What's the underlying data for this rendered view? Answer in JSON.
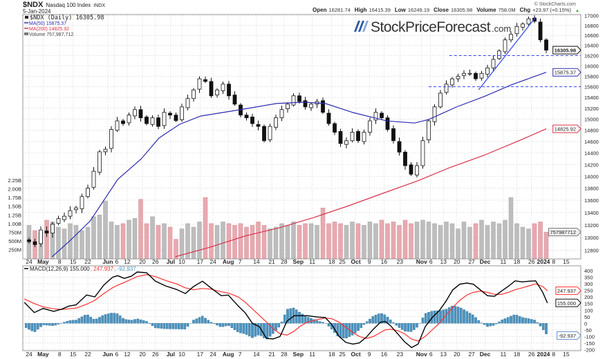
{
  "header": {
    "symbol": "$NDX",
    "name": "Nasdaq 100 Index",
    "exchange": "INDX",
    "date": "5-Jan-2024",
    "copyright": "© StockCharts.com",
    "ohlc": [
      {
        "label": "Open",
        "value": "16281.74"
      },
      {
        "label": "High",
        "value": "16415.39"
      },
      {
        "label": "Low",
        "value": "16249.19"
      },
      {
        "label": "Close",
        "value": "16305.98"
      },
      {
        "label": "Volume",
        "value": "758.0M"
      },
      {
        "label": "Chg",
        "value": "+23.97 (+0.15%)"
      }
    ],
    "change_arrow": "▲"
  },
  "logo": {
    "main": "StockPriceForecast",
    "suffix": ".com"
  },
  "legend": {
    "price": "$NDX (Daily) 16305.98",
    "ma50": "MA(50) 15875.37",
    "ma200": "MA(200) 14825.92",
    "volume": "Volume 757,987,712",
    "macd_name": "MACD(12,26,9) 155.000",
    "macd_signal": ", 247.937",
    "macd_hist": ", -92.937"
  },
  "colors": {
    "ma50": "#2b2bb0",
    "ma200": "#d8304a",
    "hline": "#3344ee",
    "vol_up": "#bdbdbd",
    "vol_down": "#e8a9b0",
    "macd": "#000000",
    "signal": "#ff3030",
    "hist": "#4b93c0"
  },
  "chart_data": [
    {
      "type": "candlestick",
      "title": "$NDX (Daily)",
      "scale": "log",
      "ylim": [
        12800,
        17000
      ],
      "y_ticks": [
        12800,
        13000,
        13200,
        13400,
        13600,
        13800,
        14000,
        14200,
        14400,
        14600,
        14800,
        15000,
        15200,
        15400,
        15600,
        15800,
        16000,
        16200,
        16400,
        16600,
        16800,
        17000
      ],
      "close": [
        12935,
        12890,
        13120,
        13070,
        13210,
        13300,
        13340,
        13430,
        13475,
        13660,
        13800,
        14085,
        14420,
        14465,
        14815,
        14970,
        14920,
        15075,
        15175,
        15025,
        14920,
        15025,
        14870,
        15125,
        15075,
        14975,
        15225,
        15380,
        15540,
        15750,
        15700,
        15430,
        15540,
        15650,
        15430,
        15275,
        15075,
        15025,
        14920,
        14870,
        14615,
        14870,
        15025,
        15175,
        15275,
        15430,
        15325,
        15225,
        15275,
        15325,
        15125,
        14920,
        14765,
        14565,
        14615,
        14765,
        14615,
        14765,
        14970,
        15125,
        15025,
        14815,
        14615,
        14415,
        14180,
        14035,
        14180,
        14615,
        14970,
        15225,
        15480,
        15650,
        15750,
        15800,
        15855,
        15855,
        15750,
        15855,
        15960,
        16125,
        16290,
        16510,
        16620,
        16780,
        16830,
        16935,
        16885,
        16510,
        16305.98
      ],
      "ma50": [
        [
          3.9,
          12702
        ],
        [
          6.8,
          12937
        ],
        [
          10.4,
          13263
        ],
        [
          15.1,
          13947
        ],
        [
          19.1,
          14299
        ],
        [
          22.1,
          14661
        ],
        [
          25.6,
          14907
        ],
        [
          29.2,
          15057
        ],
        [
          35.1,
          15159
        ],
        [
          38.6,
          15223
        ],
        [
          42.1,
          15287
        ],
        [
          46.8,
          15312
        ],
        [
          50.4,
          15287
        ],
        [
          55.1,
          15121
        ],
        [
          60.9,
          14968
        ],
        [
          65.6,
          14930
        ],
        [
          68,
          14994
        ],
        [
          72.7,
          15223
        ],
        [
          77.4,
          15416
        ],
        [
          82.1,
          15637
        ],
        [
          88,
          15875.37
        ]
      ],
      "ma200": [
        [
          24.9,
          12702
        ],
        [
          30.8,
          12849
        ],
        [
          36.7,
          13024
        ],
        [
          42.6,
          13155
        ],
        [
          48.5,
          13320
        ],
        [
          54.4,
          13510
        ],
        [
          60.2,
          13714
        ],
        [
          66.1,
          13921
        ],
        [
          71.5,
          14144
        ],
        [
          77.4,
          14358
        ],
        [
          83.3,
          14611
        ],
        [
          88,
          14825.92
        ]
      ],
      "horizontal_lines": [
        {
          "value": 16200,
          "from": 71.5
        },
        {
          "value": 15600,
          "from": 68
        }
      ],
      "trendline": [
        [
          76.5,
          15543
        ],
        [
          86.2,
          16967
        ]
      ],
      "markers": [
        {
          "label": "16305.98",
          "value": 16305.98,
          "style": "price"
        },
        {
          "label": "15875.37",
          "value": 15875.37,
          "style": "ma50"
        },
        {
          "label": "14825.92",
          "value": 14825.92,
          "style": "ma200"
        }
      ]
    },
    {
      "type": "bar",
      "title": "Volume",
      "units": "millions",
      "y_ticks": [
        {
          "v": 250,
          "label": "250M"
        },
        {
          "v": 500,
          "label": "500M"
        },
        {
          "v": 750,
          "label": "750M"
        },
        {
          "v": 1000,
          "label": "1.00B"
        },
        {
          "v": 1250,
          "label": "1.25B"
        },
        {
          "v": 1500,
          "label": "1.50B"
        },
        {
          "v": 1750,
          "label": "1.75B"
        },
        {
          "v": 2000,
          "label": "2.00B"
        },
        {
          "v": 2250,
          "label": "2.25B"
        }
      ],
      "values": [
        950,
        800,
        750,
        1100,
        1050,
        900,
        850,
        1000,
        950,
        800,
        900,
        1200,
        1250,
        1650,
        1050,
        950,
        1000,
        1100,
        1150,
        1700,
        1000,
        1200,
        950,
        1000,
        900,
        550,
        850,
        1000,
        900,
        1050,
        1750,
        1000,
        950,
        1050,
        1000,
        950,
        1000,
        900,
        950,
        1050,
        950,
        850,
        900,
        1000,
        950,
        1050,
        950,
        1000,
        1000,
        950,
        1450,
        1000,
        1050,
        1000,
        950,
        1050,
        1000,
        950,
        1050,
        1000,
        1100,
        1000,
        1050,
        950,
        1100,
        1000,
        1050,
        1100,
        1050,
        1000,
        950,
        1050,
        1000,
        850,
        1050,
        900,
        1000,
        1100,
        950,
        1050,
        1000,
        1100,
        1750,
        1000,
        900,
        850,
        1000,
        1050,
        758
      ],
      "marker": {
        "label": "757987712",
        "value": 758
      }
    },
    {
      "type": "line",
      "title": "MACD(12,26,9)",
      "ylim": [
        -200,
        400
      ],
      "y_ticks": [
        -200,
        -150,
        -100,
        -50,
        0,
        50,
        100,
        150,
        200,
        250,
        300,
        350,
        400
      ],
      "points_t_macd_signal": [
        [
          -0.8,
          159,
          185
        ],
        [
          0.9,
          82,
          150
        ],
        [
          2.4,
          113,
          125
        ],
        [
          4.2,
          91,
          110
        ],
        [
          5.6,
          108,
          105
        ],
        [
          6.8,
          131,
          110
        ],
        [
          8.0,
          140,
          115
        ],
        [
          9.8,
          215,
          145
        ],
        [
          11.2,
          201,
          175
        ],
        [
          12.7,
          289,
          225
        ],
        [
          14.2,
          350,
          270
        ],
        [
          15.1,
          362,
          290
        ],
        [
          16.2,
          341,
          310
        ],
        [
          17.4,
          358,
          335
        ],
        [
          18.4,
          390,
          355
        ],
        [
          20.0,
          385,
          370
        ],
        [
          21.5,
          320,
          355
        ],
        [
          23.3,
          283,
          325
        ],
        [
          25.1,
          257,
          300
        ],
        [
          26.6,
          226,
          270
        ],
        [
          28.0,
          280,
          255
        ],
        [
          29.5,
          320,
          265
        ],
        [
          30.9,
          271,
          260
        ],
        [
          32.7,
          210,
          240
        ],
        [
          33.9,
          215,
          230
        ],
        [
          35.6,
          131,
          200
        ],
        [
          36.8,
          79,
          160
        ],
        [
          38.0,
          0,
          110
        ],
        [
          39.2,
          -26,
          60
        ],
        [
          40.4,
          -114,
          10
        ],
        [
          41.5,
          -119,
          -40
        ],
        [
          42.7,
          -100,
          -80
        ],
        [
          43.9,
          17,
          -90
        ],
        [
          45.1,
          58,
          -60
        ],
        [
          46.2,
          58,
          -20
        ],
        [
          47.4,
          58,
          10
        ],
        [
          49.2,
          47,
          30
        ],
        [
          50.4,
          44,
          40
        ],
        [
          51.5,
          -9,
          35
        ],
        [
          52.7,
          -97,
          10
        ],
        [
          53.9,
          -145,
          -30
        ],
        [
          55.1,
          -158,
          -70
        ],
        [
          56.2,
          -149,
          -100
        ],
        [
          57.4,
          -105,
          -115
        ],
        [
          58.6,
          -44,
          -100
        ],
        [
          59.8,
          8,
          -70
        ],
        [
          60.6,
          14,
          -50
        ],
        [
          61.5,
          -18,
          -45
        ],
        [
          62.7,
          -79,
          -55
        ],
        [
          63.9,
          -140,
          -80
        ],
        [
          65.1,
          -184,
          -120
        ],
        [
          66.2,
          -158,
          -135
        ],
        [
          67.4,
          -26,
          -100
        ],
        [
          68.6,
          44,
          -50
        ],
        [
          69.8,
          96,
          0
        ],
        [
          70.9,
          166,
          60
        ],
        [
          72.1,
          254,
          120
        ],
        [
          73.3,
          297,
          175
        ],
        [
          74.5,
          306,
          215
        ],
        [
          75.6,
          297,
          235
        ],
        [
          76.8,
          254,
          245
        ],
        [
          78.0,
          210,
          235
        ],
        [
          79.2,
          205,
          220
        ],
        [
          80.4,
          245,
          220
        ],
        [
          81.5,
          280,
          235
        ],
        [
          82.7,
          323,
          255
        ],
        [
          83.9,
          315,
          270
        ],
        [
          85.1,
          320,
          285
        ],
        [
          86.2,
          323,
          300
        ],
        [
          87.4,
          236,
          280
        ],
        [
          88.2,
          155,
          247.937
        ]
      ],
      "markers": [
        {
          "label": "247.937",
          "value": 247.937,
          "style": "signal"
        },
        {
          "label": "155.000",
          "value": 155,
          "style": "macd"
        },
        {
          "label": "-92.937",
          "value": -92.937,
          "style": "hist"
        }
      ]
    }
  ],
  "x_axis": {
    "ticks": [
      {
        "t": 0,
        "label": "24"
      },
      {
        "t": 2.4,
        "label": "May",
        "bold": true
      },
      {
        "t": 5.2,
        "label": "8"
      },
      {
        "t": 7.5,
        "label": "15"
      },
      {
        "t": 10,
        "label": "22"
      },
      {
        "t": 13.4,
        "label": "Jun",
        "bold": true
      },
      {
        "t": 14.5,
        "label": "6"
      },
      {
        "t": 16.7,
        "label": "12"
      },
      {
        "t": 19.3,
        "label": "20"
      },
      {
        "t": 21.5,
        "label": "26"
      },
      {
        "t": 24.1,
        "label": "Jul",
        "bold": true
      },
      {
        "t": 26,
        "label": "10"
      },
      {
        "t": 29.1,
        "label": "17"
      },
      {
        "t": 31.3,
        "label": "24"
      },
      {
        "t": 33.9,
        "label": "Aug",
        "bold": true
      },
      {
        "t": 35.9,
        "label": "7"
      },
      {
        "t": 38.7,
        "label": "14"
      },
      {
        "t": 41.3,
        "label": "21"
      },
      {
        "t": 43.4,
        "label": "28"
      },
      {
        "t": 45.8,
        "label": "Sep",
        "bold": true
      },
      {
        "t": 48.2,
        "label": "11"
      },
      {
        "t": 51.5,
        "label": "18"
      },
      {
        "t": 53.3,
        "label": "25"
      },
      {
        "t": 55.6,
        "label": "Oct",
        "bold": true
      },
      {
        "t": 57.9,
        "label": "9"
      },
      {
        "t": 60.4,
        "label": "16"
      },
      {
        "t": 63.1,
        "label": "23"
      },
      {
        "t": 66.8,
        "label": "Nov",
        "bold": true
      },
      {
        "t": 68.3,
        "label": "6"
      },
      {
        "t": 70.5,
        "label": "13"
      },
      {
        "t": 72.8,
        "label": "20"
      },
      {
        "t": 75.3,
        "label": "27"
      },
      {
        "t": 77.6,
        "label": "Dec",
        "bold": true
      },
      {
        "t": 80.7,
        "label": "11"
      },
      {
        "t": 83,
        "label": "18"
      },
      {
        "t": 85.5,
        "label": "26"
      },
      {
        "t": 87.4,
        "label": "2024",
        "bold": true
      },
      {
        "t": 89.1,
        "label": "8"
      },
      {
        "t": 91.4,
        "label": "15"
      }
    ]
  }
}
